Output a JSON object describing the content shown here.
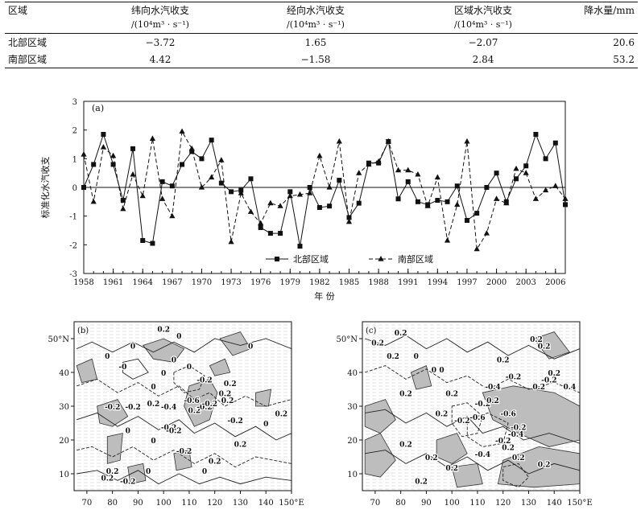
{
  "table": {
    "headers": {
      "region": "区域",
      "zonal": "纬向水汽收支",
      "meridional": "经向水汽收支",
      "regional": "区域水汽收支",
      "precip": "降水量/mm",
      "unit": "/(10⁴m³ · s⁻¹)"
    },
    "rows": [
      {
        "region": "北部区域",
        "zonal": "−3.72",
        "meridional": "1.65",
        "regional": "−2.07",
        "precip": "20.6"
      },
      {
        "region": "南部区域",
        "zonal": "4.42",
        "meridional": "−1.58",
        "regional": "2.84",
        "precip": "53.2"
      }
    ]
  },
  "chart_data": {
    "type": "line",
    "panel_label": "(a)",
    "xlabel": "年 份",
    "ylabel": "标准化水汽收支",
    "ylim": [
      -3,
      3
    ],
    "xlim": [
      1958,
      2007
    ],
    "yticks": [
      "3",
      "2",
      "1",
      "0",
      "-1",
      "-2",
      "-3"
    ],
    "xticks": [
      "1958",
      "1961",
      "1964",
      "1967",
      "1970",
      "1973",
      "1976",
      "1979",
      "1982",
      "1985",
      "1988",
      "1991",
      "1994",
      "1997",
      "2000",
      "2003",
      "2006"
    ],
    "legend_position": "bottom-center",
    "x": [
      1958,
      1959,
      1960,
      1961,
      1962,
      1963,
      1964,
      1965,
      1966,
      1967,
      1968,
      1969,
      1970,
      1971,
      1972,
      1973,
      1974,
      1975,
      1976,
      1977,
      1978,
      1979,
      1980,
      1981,
      1982,
      1983,
      1984,
      1985,
      1986,
      1987,
      1988,
      1989,
      1990,
      1991,
      1992,
      1993,
      1994,
      1995,
      1996,
      1997,
      1998,
      1999,
      2000,
      2001,
      2002,
      2003,
      2004,
      2005,
      2006,
      2007
    ],
    "series": [
      {
        "name": "北部区域",
        "marker": "square",
        "dash": "solid",
        "values": [
          0.0,
          0.8,
          1.85,
          0.8,
          -0.45,
          1.35,
          -1.85,
          -1.95,
          0.2,
          0.05,
          0.8,
          1.25,
          1.0,
          1.65,
          0.15,
          -0.15,
          -0.1,
          0.3,
          -1.4,
          -1.6,
          -1.6,
          -0.15,
          -2.05,
          0.0,
          -0.7,
          -0.65,
          0.25,
          -1.05,
          -0.55,
          0.85,
          0.85,
          1.6,
          -0.4,
          0.2,
          -0.5,
          -0.6,
          -0.45,
          -0.5,
          0.05,
          -1.15,
          -0.9,
          0.0,
          0.5,
          -0.5,
          0.3,
          0.75,
          1.85,
          1.0,
          1.55,
          -0.6
        ]
      },
      {
        "name": "南部区域",
        "marker": "triangle",
        "dash": "dashed",
        "values": [
          1.15,
          -0.5,
          1.4,
          1.1,
          -0.75,
          0.45,
          -0.3,
          1.7,
          -0.4,
          -1.0,
          1.95,
          1.35,
          0.0,
          0.35,
          0.95,
          -1.9,
          -0.2,
          -0.85,
          -1.25,
          -0.55,
          -0.65,
          -0.3,
          -0.25,
          -0.2,
          1.1,
          0.0,
          1.6,
          -1.2,
          0.5,
          0.8,
          0.9,
          1.6,
          0.6,
          0.6,
          0.45,
          -0.65,
          0.35,
          -1.85,
          -0.6,
          1.6,
          -2.15,
          -1.6,
          -0.4,
          -0.55,
          0.65,
          0.5,
          -0.4,
          -0.1,
          0.05,
          -0.4
        ]
      }
    ]
  },
  "maps": {
    "b": {
      "panel_label": "(b)",
      "lat_ticks": [
        "50°N",
        "40",
        "30",
        "20",
        "10"
      ],
      "lon_ticks": [
        "70",
        "80",
        "90",
        "100",
        "110",
        "120",
        "130",
        "140",
        "150°E"
      ],
      "labels": [
        "0.2",
        "0",
        "0",
        "-0",
        "0",
        "0.2",
        "0",
        "0",
        "0",
        "0.2",
        "-0.2",
        "-0.2",
        "0.2",
        "0",
        "-0.2",
        "-0.2",
        "0.2",
        "-0.4",
        "-0.6",
        "-0.2",
        "0.2",
        "0",
        "-0.2",
        "0.2",
        "-0.2",
        "0",
        "0",
        "0.2",
        "0",
        "0.2",
        "-0.2",
        "0",
        "-0.2",
        "0.2",
        "0.2",
        "-0.2",
        "0"
      ]
    },
    "c": {
      "panel_label": "(c)",
      "lat_ticks": [
        "50°N",
        "40",
        "30",
        "20",
        "10"
      ],
      "lon_ticks": [
        "70",
        "80",
        "90",
        "100",
        "110",
        "120",
        "130",
        "140",
        "150°E"
      ],
      "labels": [
        "0.2",
        "0.2",
        "0.2",
        "0.2",
        "0.2",
        "0",
        "0",
        "0.2",
        "0",
        "0.2",
        "-0.2",
        "-0.4",
        "-0.2",
        "0.2",
        "0.4",
        "0.2",
        "-0.2",
        "0.2",
        "0.2",
        "-0.6",
        "-0.6",
        "-0.2",
        "-0.4",
        "-0.2",
        "0.2",
        "0.2",
        "0.2",
        "0.2",
        "-0.4",
        "0.2",
        "0.2",
        "0.2",
        "0.2",
        "-0.2"
      ]
    }
  }
}
